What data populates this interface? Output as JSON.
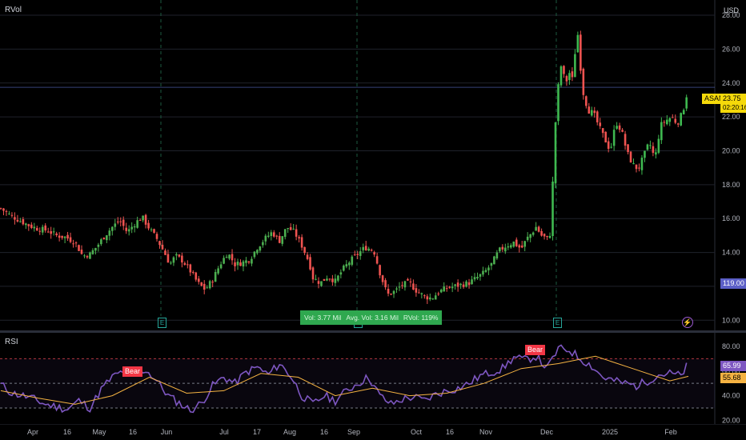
{
  "header": {
    "indicator_label": "RVol",
    "currency": "USD"
  },
  "rsi_pane": {
    "label": "RSI"
  },
  "price_badges": {
    "symbol": "ASAN",
    "last_price": "23.75",
    "countdown": "02:20:16",
    "marker_value": "119.00"
  },
  "rsi_badges": {
    "rsi_value": "65.99",
    "rsi_ma_value": "55.68"
  },
  "rvol_box": {
    "vol": "Vol: 3.77 Mil",
    "avg": "Avg. Vol: 3.16 Mil",
    "rvol": "RVol: 119%"
  },
  "divergence_labels": [
    "Bear",
    "Bear"
  ],
  "event_markers": [
    "E",
    "E",
    "E"
  ],
  "colors": {
    "up": "#26a69a",
    "up_bright": "#2fa84f",
    "down": "#ef5350",
    "rsi": "#7e57c2",
    "rsi_ma": "#f5b342",
    "badge_yellow": "#f5d90a",
    "bear": "#f23645"
  },
  "chart_data": [
    {
      "type": "candlestick",
      "title": "",
      "ylabel": "USD",
      "ylim": [
        9.4,
        28.9
      ],
      "y_ticks": [
        "10.00",
        "12.00",
        "14.00",
        "16.00",
        "18.00",
        "20.00",
        "22.00",
        "24.00",
        "26.00",
        "28.00"
      ],
      "x_ticks": [
        "Apr",
        "16",
        "May",
        "16",
        "Jun",
        "Jul",
        "17",
        "Aug",
        "16",
        "Sep",
        "Oct",
        "16",
        "Nov",
        "Dec",
        "2025",
        "Feb"
      ],
      "close_path": [
        [
          0,
          16.6
        ],
        [
          5,
          16.2
        ],
        [
          10,
          15.9
        ],
        [
          15,
          15.6
        ],
        [
          20,
          15.4
        ],
        [
          25,
          15.3
        ],
        [
          30,
          15.0
        ],
        [
          35,
          14.9
        ],
        [
          40,
          14.6
        ],
        [
          44,
          13.8
        ],
        [
          48,
          13.9
        ],
        [
          52,
          14.4
        ],
        [
          56,
          15.0
        ],
        [
          60,
          15.5
        ],
        [
          64,
          15.9
        ],
        [
          68,
          15.2
        ],
        [
          72,
          15.7
        ],
        [
          76,
          16.1
        ],
        [
          80,
          15.4
        ],
        [
          84,
          14.8
        ],
        [
          88,
          14.0
        ],
        [
          91,
          13.3
        ],
        [
          94,
          13.8
        ],
        [
          98,
          13.5
        ],
        [
          102,
          12.9
        ],
        [
          106,
          12.2
        ],
        [
          110,
          11.8
        ],
        [
          114,
          12.4
        ],
        [
          118,
          13.3
        ],
        [
          122,
          14.0
        ],
        [
          126,
          13.3
        ],
        [
          130,
          13.4
        ],
        [
          134,
          13.6
        ],
        [
          138,
          14.3
        ],
        [
          142,
          14.8
        ],
        [
          146,
          15.2
        ],
        [
          150,
          14.7
        ],
        [
          154,
          15.5
        ],
        [
          158,
          15.2
        ],
        [
          162,
          14.4
        ],
        [
          166,
          13.4
        ],
        [
          168,
          12.5
        ],
        [
          172,
          12.2
        ],
        [
          176,
          12.6
        ],
        [
          180,
          12.3
        ],
        [
          184,
          13.0
        ],
        [
          188,
          13.5
        ],
        [
          192,
          13.9
        ],
        [
          196,
          14.3
        ],
        [
          199,
          14.2
        ],
        [
          201,
          14.0
        ],
        [
          204,
          12.8
        ],
        [
          208,
          11.5
        ],
        [
          212,
          11.7
        ],
        [
          216,
          12.1
        ],
        [
          220,
          12.2
        ],
        [
          224,
          11.7
        ],
        [
          228,
          11.4
        ],
        [
          232,
          11.3
        ],
        [
          236,
          11.7
        ],
        [
          240,
          11.9
        ],
        [
          244,
          12.0
        ],
        [
          248,
          12.1
        ],
        [
          252,
          12.2
        ],
        [
          256,
          12.5
        ],
        [
          260,
          12.8
        ],
        [
          264,
          13.3
        ],
        [
          268,
          14.1
        ],
        [
          272,
          14.4
        ],
        [
          276,
          14.6
        ],
        [
          280,
          14.2
        ],
        [
          283,
          14.8
        ],
        [
          286,
          15.2
        ],
        [
          288,
          15.5
        ],
        [
          291,
          15.0
        ],
        [
          294,
          14.8
        ],
        [
          296,
          15.2
        ],
        [
          298,
          21.0
        ],
        [
          301,
          25.2
        ],
        [
          304,
          24.0
        ],
        [
          306,
          24.6
        ],
        [
          308,
          24.1
        ],
        [
          310,
          27.5
        ],
        [
          313,
          23.6
        ],
        [
          316,
          22.4
        ],
        [
          319,
          22.2
        ],
        [
          322,
          21.4
        ],
        [
          325,
          20.7
        ],
        [
          328,
          20.0
        ],
        [
          331,
          21.7
        ],
        [
          334,
          21.2
        ],
        [
          337,
          19.9
        ],
        [
          340,
          19.2
        ],
        [
          343,
          18.9
        ],
        [
          346,
          19.7
        ],
        [
          349,
          20.5
        ],
        [
          352,
          19.5
        ],
        [
          355,
          21.5
        ],
        [
          358,
          21.8
        ],
        [
          361,
          22.0
        ],
        [
          364,
          21.6
        ],
        [
          367,
          22.3
        ],
        [
          370,
          23.75
        ]
      ]
    },
    {
      "type": "line",
      "title": "RSI",
      "ylim": [
        17,
        91
      ],
      "y_ticks": [
        "20.00",
        "40.00",
        "60.00",
        "80.00"
      ],
      "levels": [
        70,
        50,
        30
      ],
      "series": [
        {
          "name": "RSI",
          "values": [
            [
              0,
              49
            ],
            [
              6,
              42
            ],
            [
              12,
              40
            ],
            [
              18,
              37
            ],
            [
              24,
              33
            ],
            [
              30,
              31
            ],
            [
              36,
              29
            ],
            [
              42,
              36
            ],
            [
              48,
              30
            ],
            [
              54,
              45
            ],
            [
              60,
              55
            ],
            [
              66,
              60
            ],
            [
              72,
              57
            ],
            [
              78,
              61
            ],
            [
              84,
              52
            ],
            [
              90,
              40
            ],
            [
              96,
              34
            ],
            [
              102,
              28
            ],
            [
              108,
              34
            ],
            [
              114,
              48
            ],
            [
              120,
              55
            ],
            [
              126,
              50
            ],
            [
              132,
              59
            ],
            [
              138,
              63
            ],
            [
              144,
              57
            ],
            [
              150,
              66
            ],
            [
              156,
              56
            ],
            [
              162,
              40
            ],
            [
              168,
              33
            ],
            [
              174,
              40
            ],
            [
              180,
              36
            ],
            [
              186,
              44
            ],
            [
              192,
              50
            ],
            [
              198,
              55
            ],
            [
              204,
              40
            ],
            [
              210,
              33
            ],
            [
              216,
              37
            ],
            [
              222,
              39
            ],
            [
              228,
              36
            ],
            [
              234,
              41
            ],
            [
              240,
              44
            ],
            [
              246,
              46
            ],
            [
              252,
              50
            ],
            [
              258,
              56
            ],
            [
              264,
              59
            ],
            [
              270,
              62
            ],
            [
              276,
              71
            ],
            [
              282,
              69
            ],
            [
              288,
              72
            ],
            [
              294,
              62
            ],
            [
              300,
              78
            ],
            [
              306,
              77
            ],
            [
              312,
              70
            ],
            [
              318,
              64
            ],
            [
              324,
              55
            ],
            [
              330,
              52
            ],
            [
              336,
              50
            ],
            [
              342,
              48
            ],
            [
              348,
              52
            ],
            [
              354,
              57
            ],
            [
              360,
              58
            ],
            [
              366,
              56
            ],
            [
              370,
              66
            ]
          ]
        },
        {
          "name": "RSI MA",
          "values": [
            [
              0,
              44
            ],
            [
              20,
              38
            ],
            [
              40,
              33
            ],
            [
              60,
              40
            ],
            [
              80,
              55
            ],
            [
              100,
              42
            ],
            [
              120,
              44
            ],
            [
              140,
              58
            ],
            [
              160,
              55
            ],
            [
              180,
              40
            ],
            [
              200,
              46
            ],
            [
              220,
              40
            ],
            [
              240,
              42
            ],
            [
              260,
              50
            ],
            [
              280,
              62
            ],
            [
              300,
              66
            ],
            [
              320,
              72
            ],
            [
              340,
              62
            ],
            [
              360,
              52
            ],
            [
              370,
              55.7
            ]
          ]
        }
      ]
    }
  ]
}
